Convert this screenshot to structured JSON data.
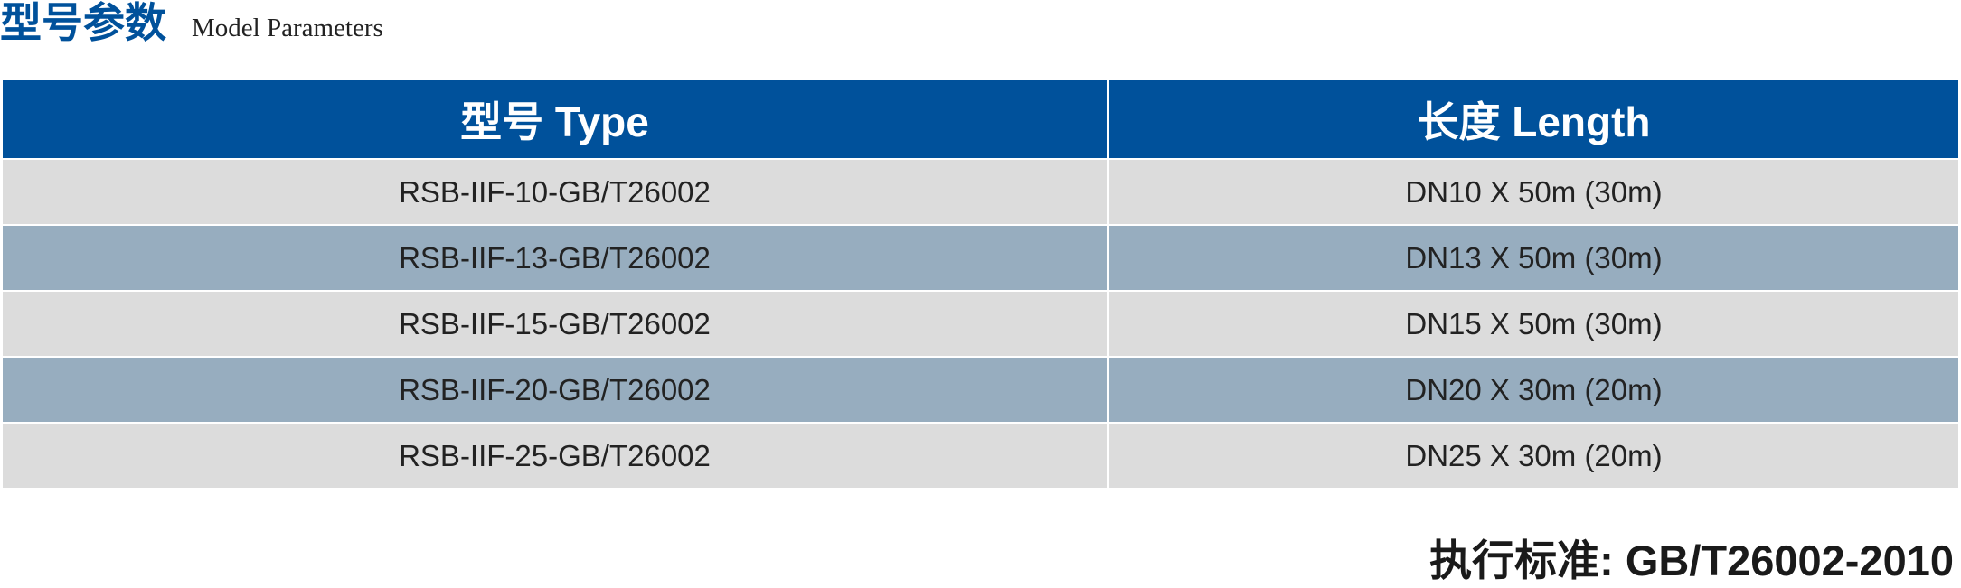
{
  "header": {
    "title": "型号参数",
    "subtitle": "Model Parameters"
  },
  "table": {
    "columns": [
      "型号 Type",
      "长度 Length"
    ],
    "rows": [
      [
        "RSB-IIF-10-GB/T26002",
        "DN10 X 50m (30m)"
      ],
      [
        "RSB-IIF-13-GB/T26002",
        "DN13 X 50m (30m)"
      ],
      [
        "RSB-IIF-15-GB/T26002",
        "DN15 X 50m (30m)"
      ],
      [
        "RSB-IIF-20-GB/T26002",
        "DN20 X 30m (20m)"
      ],
      [
        "RSB-IIF-25-GB/T26002",
        "DN25 X 30m (20m)"
      ]
    ]
  },
  "footer": {
    "standard": "执行标准: GB/T26002-2010"
  }
}
